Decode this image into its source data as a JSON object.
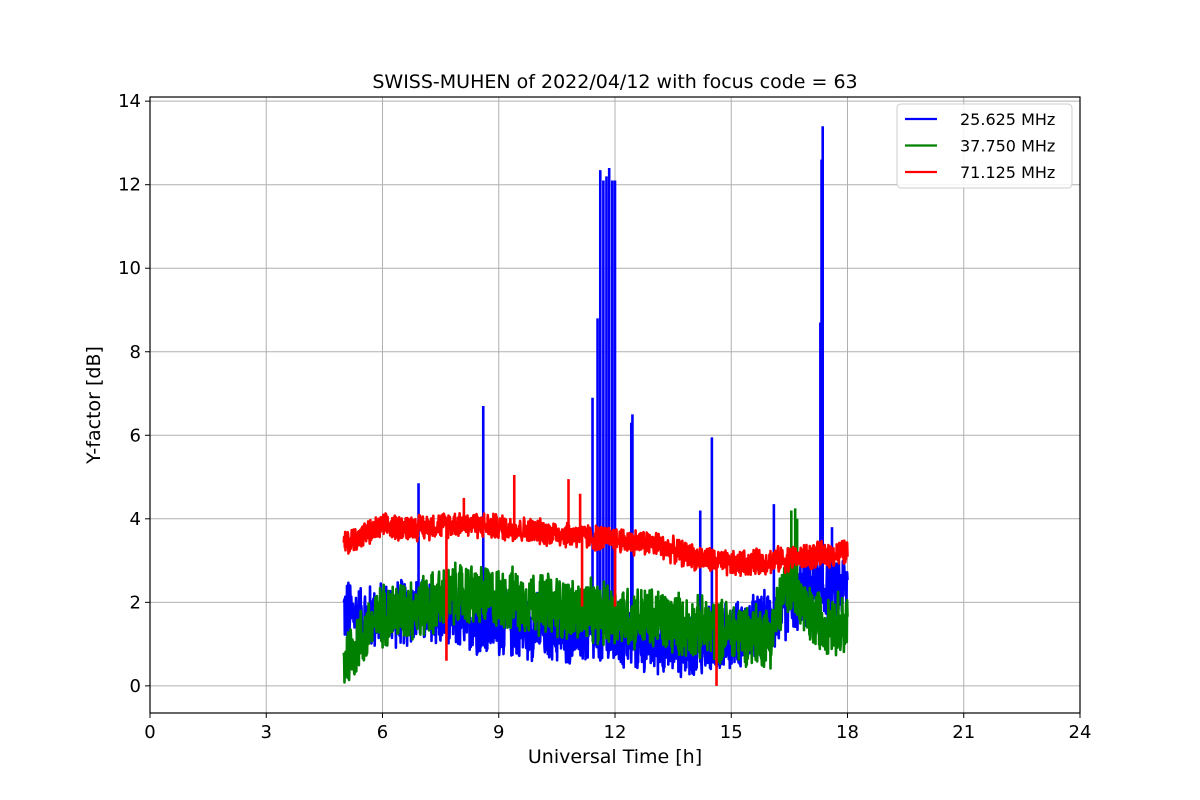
{
  "chart_data": {
    "type": "line",
    "title": "SWISS-MUHEN of 2022/04/12 with focus code = 63",
    "xlabel": "Universal Time [h]",
    "ylabel": "Y-factor [dB]",
    "xlim": [
      0,
      24
    ],
    "ylim": [
      -0.65,
      14.1
    ],
    "xticks": [
      0,
      3,
      6,
      9,
      12,
      15,
      18,
      21,
      24
    ],
    "yticks": [
      0,
      2,
      4,
      6,
      8,
      10,
      12,
      14
    ],
    "grid": true,
    "legend_position": "top-right",
    "series": [
      {
        "name": "25.625 MHz",
        "color": "#0000ff",
        "baseline": [
          [
            5.0,
            1.8
          ],
          [
            5.5,
            1.6
          ],
          [
            6.0,
            1.7
          ],
          [
            7.0,
            1.8
          ],
          [
            8.0,
            1.6
          ],
          [
            9.0,
            1.5
          ],
          [
            10.0,
            1.4
          ],
          [
            11.0,
            1.3
          ],
          [
            12.0,
            1.2
          ],
          [
            13.0,
            1.1
          ],
          [
            14.0,
            1.0
          ],
          [
            15.0,
            1.2
          ],
          [
            16.0,
            1.5
          ],
          [
            16.5,
            2.0
          ],
          [
            17.0,
            2.3
          ],
          [
            18.0,
            2.4
          ]
        ],
        "amplitude": 0.9,
        "min": 0.0,
        "spikes": [
          [
            6.93,
            4.85
          ],
          [
            8.6,
            6.7
          ],
          [
            11.42,
            6.9
          ],
          [
            11.55,
            8.8
          ],
          [
            11.62,
            12.35
          ],
          [
            11.7,
            12.1
          ],
          [
            11.78,
            12.2
          ],
          [
            11.85,
            12.4
          ],
          [
            11.93,
            12.1
          ],
          [
            12.0,
            12.1
          ],
          [
            12.42,
            6.3
          ],
          [
            12.45,
            6.5
          ],
          [
            14.2,
            4.2
          ],
          [
            14.5,
            5.95
          ],
          [
            16.1,
            4.35
          ],
          [
            17.3,
            8.7
          ],
          [
            17.33,
            12.6
          ],
          [
            17.36,
            13.4
          ],
          [
            17.6,
            3.8
          ]
        ]
      },
      {
        "name": "37.750 MHz",
        "color": "#008000",
        "baseline": [
          [
            5.0,
            0.6
          ],
          [
            5.5,
            1.2
          ],
          [
            6.0,
            1.7
          ],
          [
            7.0,
            1.9
          ],
          [
            8.0,
            2.2
          ],
          [
            9.0,
            2.1
          ],
          [
            10.0,
            2.0
          ],
          [
            11.0,
            1.8
          ],
          [
            12.0,
            1.7
          ],
          [
            13.0,
            1.6
          ],
          [
            14.0,
            1.4
          ],
          [
            15.0,
            1.3
          ],
          [
            16.0,
            1.2
          ],
          [
            16.5,
            2.6
          ],
          [
            17.0,
            1.6
          ],
          [
            18.0,
            1.5
          ]
        ],
        "amplitude": 0.85,
        "min": 0.0,
        "spikes": [
          [
            16.55,
            4.2
          ],
          [
            16.65,
            4.25
          ],
          [
            16.7,
            4.0
          ]
        ]
      },
      {
        "name": "71.125 MHz",
        "color": "#ff0000",
        "baseline": [
          [
            5.0,
            3.4
          ],
          [
            5.5,
            3.6
          ],
          [
            6.0,
            3.8
          ],
          [
            7.0,
            3.8
          ],
          [
            8.0,
            3.9
          ],
          [
            9.0,
            3.8
          ],
          [
            10.0,
            3.7
          ],
          [
            11.0,
            3.6
          ],
          [
            12.0,
            3.5
          ],
          [
            13.0,
            3.4
          ],
          [
            14.0,
            3.1
          ],
          [
            15.0,
            2.9
          ],
          [
            16.0,
            3.0
          ],
          [
            17.0,
            3.1
          ],
          [
            18.0,
            3.2
          ]
        ],
        "amplitude": 0.35,
        "min": 2.5,
        "spikes": [
          [
            8.1,
            4.5
          ],
          [
            9.4,
            5.05
          ],
          [
            10.8,
            4.95
          ],
          [
            11.1,
            4.6
          ]
        ],
        "dips": [
          [
            7.65,
            0.6
          ],
          [
            11.15,
            1.9
          ],
          [
            12.0,
            1.9
          ],
          [
            14.62,
            0.0
          ]
        ]
      }
    ]
  }
}
